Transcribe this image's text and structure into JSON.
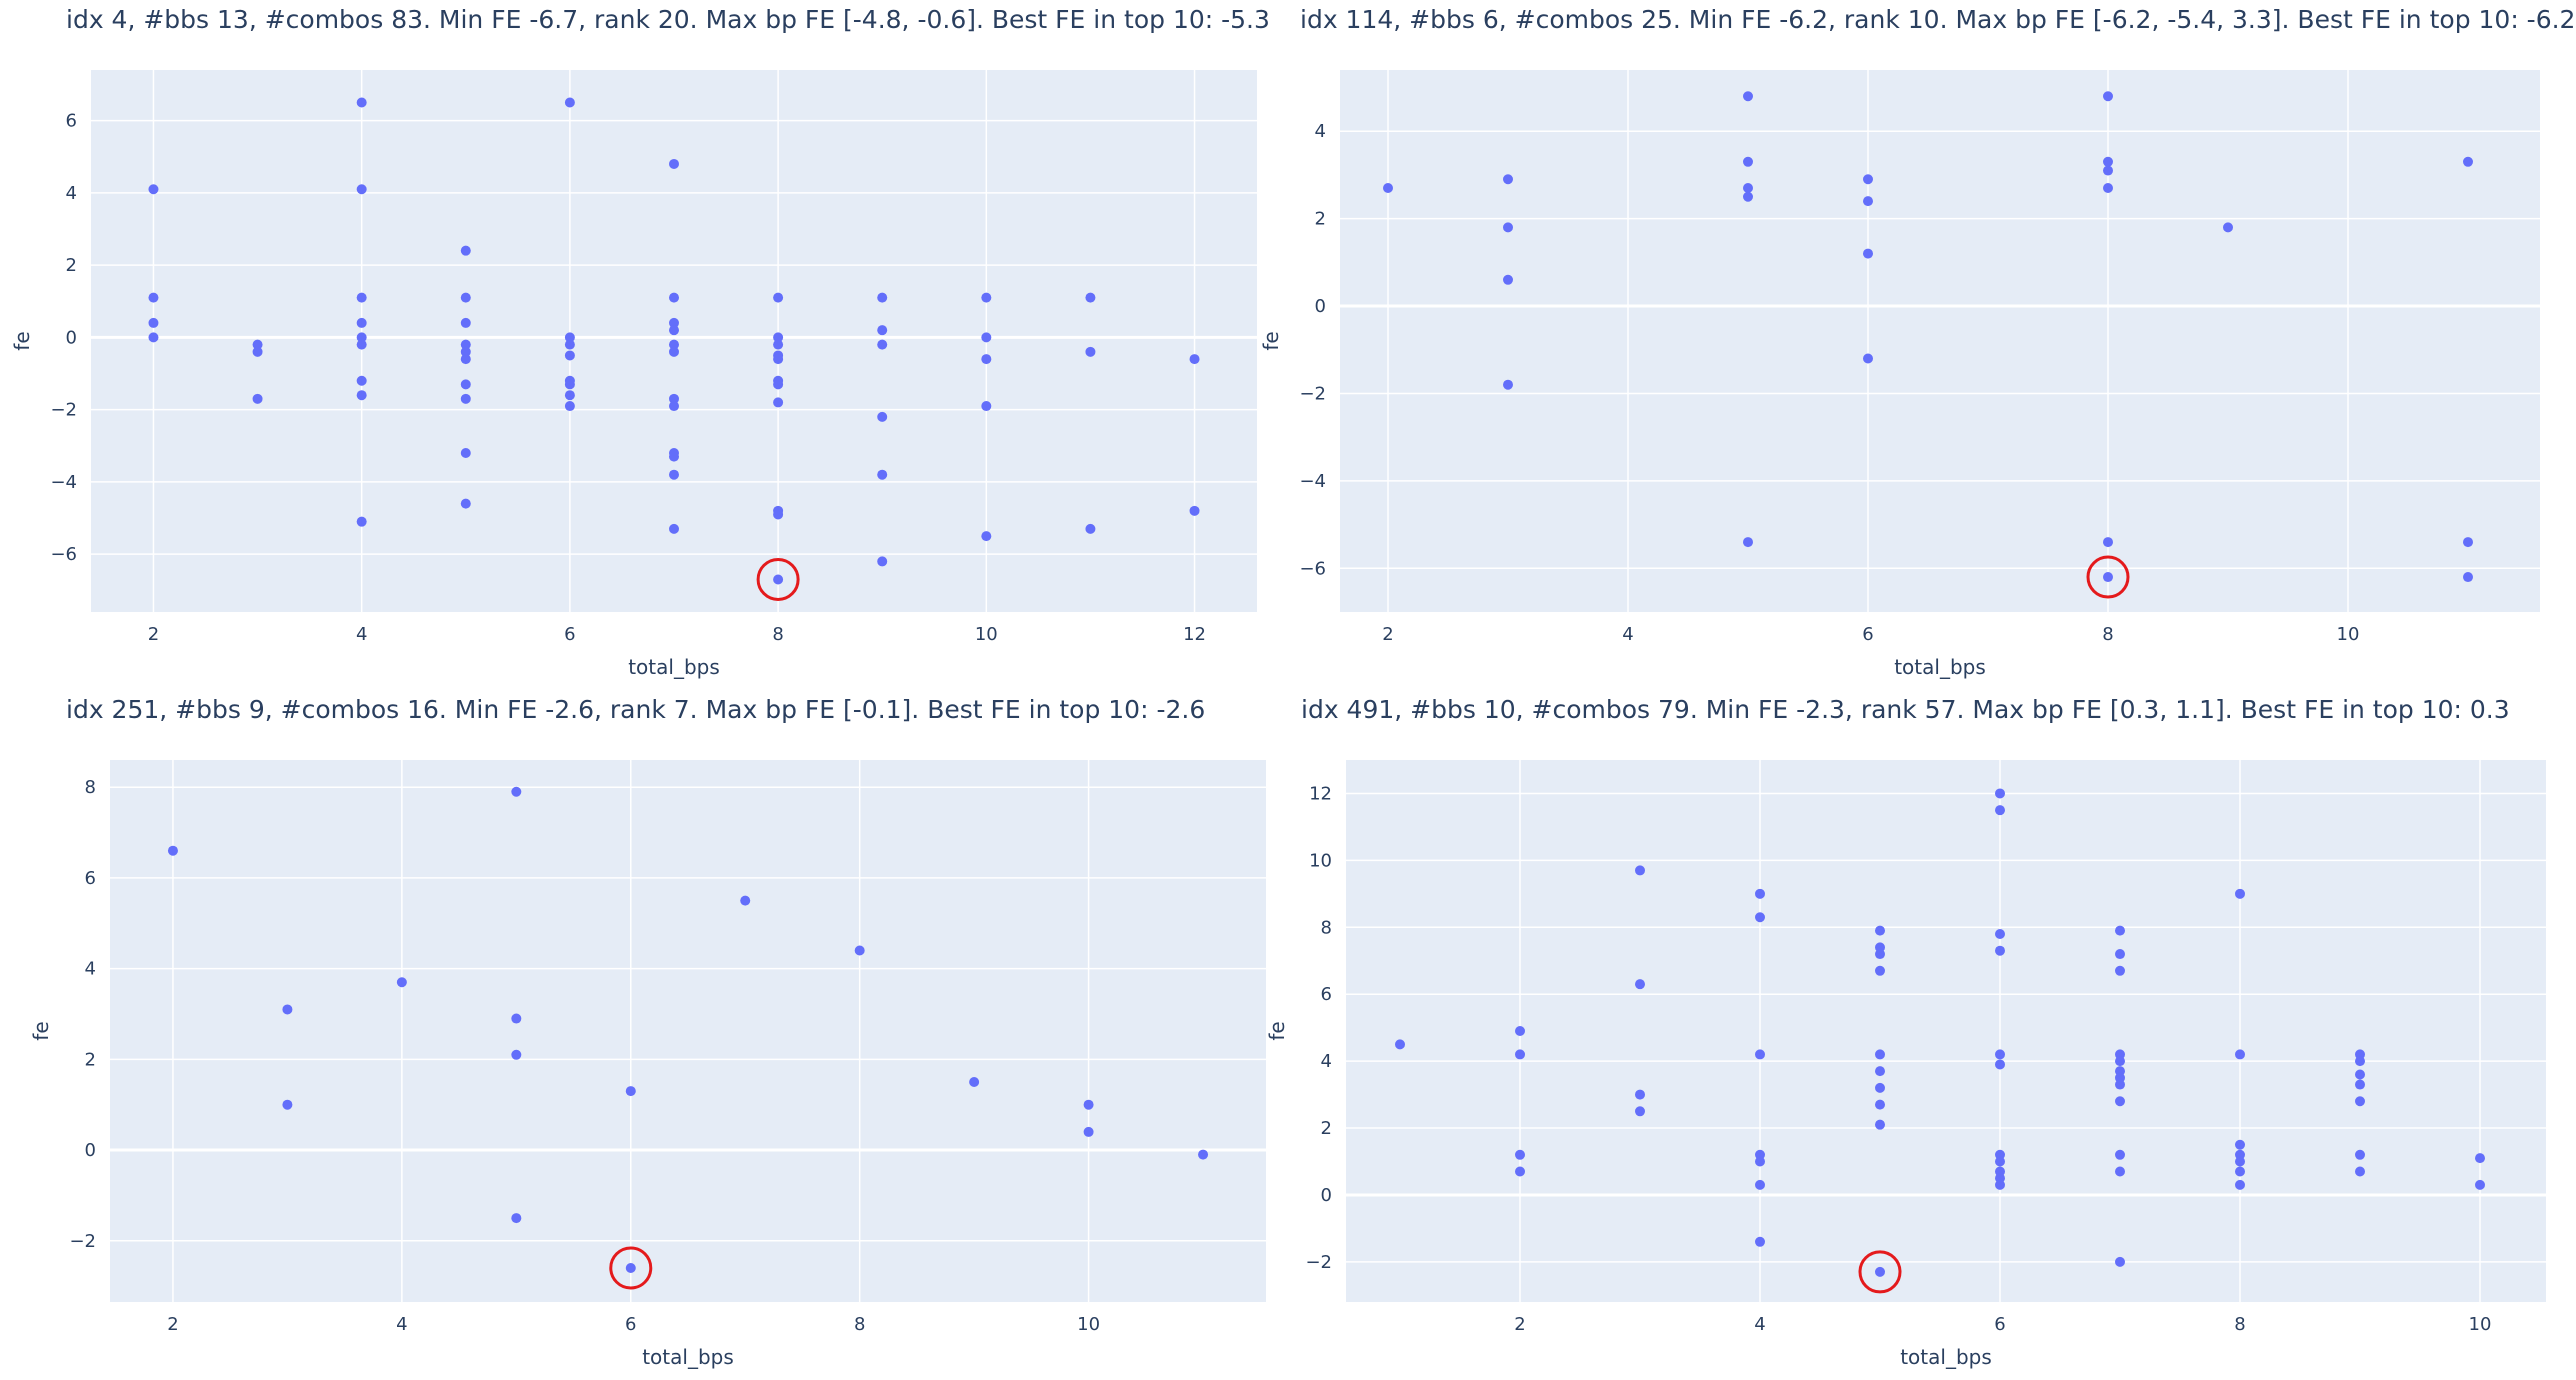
{
  "colors": {
    "background": "#ffffff",
    "plot_bg": "#e5ecf6",
    "grid": "#ffffff",
    "point": "#636efa",
    "highlight": "#e41a1c",
    "text": "#2a3f5f"
  },
  "chart_data": [
    {
      "type": "scatter",
      "title": "idx 4, #bbs 13, #combos 83. Min FE -6.7, rank 20. Max bp FE [-4.8, -0.6]. Best FE in top 10: -5.3",
      "xlabel": "total_bps",
      "ylabel": "fe",
      "xlim": [
        1.4,
        12.6
      ],
      "ylim": [
        -7.6,
        7.4
      ],
      "xticks": [
        2,
        4,
        6,
        8,
        10,
        12
      ],
      "yticks": [
        -6,
        -4,
        -2,
        0,
        2,
        4,
        6
      ],
      "grid": true,
      "highlight": {
        "x": 8,
        "y": -6.7
      },
      "points": [
        [
          2,
          4.1
        ],
        [
          2,
          1.1
        ],
        [
          2,
          0.4
        ],
        [
          2,
          0.0
        ],
        [
          3,
          -0.2
        ],
        [
          3,
          -0.4
        ],
        [
          3,
          -1.7
        ],
        [
          4,
          6.5
        ],
        [
          4,
          4.1
        ],
        [
          4,
          1.1
        ],
        [
          4,
          0.4
        ],
        [
          4,
          0.0
        ],
        [
          4,
          -0.2
        ],
        [
          4,
          -1.2
        ],
        [
          4,
          -1.6
        ],
        [
          4,
          -5.1
        ],
        [
          5,
          2.4
        ],
        [
          5,
          1.1
        ],
        [
          5,
          0.4
        ],
        [
          5,
          -0.2
        ],
        [
          5,
          -0.4
        ],
        [
          5,
          -0.6
        ],
        [
          5,
          -1.3
        ],
        [
          5,
          -1.7
        ],
        [
          5,
          -3.2
        ],
        [
          5,
          -4.6
        ],
        [
          6,
          6.5
        ],
        [
          6,
          0.0
        ],
        [
          6,
          -0.2
        ],
        [
          6,
          -0.5
        ],
        [
          6,
          -1.2
        ],
        [
          6,
          -1.3
        ],
        [
          6,
          -1.6
        ],
        [
          6,
          -1.9
        ],
        [
          7,
          4.8
        ],
        [
          7,
          1.1
        ],
        [
          7,
          0.4
        ],
        [
          7,
          0.2
        ],
        [
          7,
          -0.2
        ],
        [
          7,
          -0.4
        ],
        [
          7,
          -1.7
        ],
        [
          7,
          -1.9
        ],
        [
          7,
          -3.2
        ],
        [
          7,
          -3.3
        ],
        [
          7,
          -3.8
        ],
        [
          7,
          -5.3
        ],
        [
          8,
          1.1
        ],
        [
          8,
          0.0
        ],
        [
          8,
          -0.2
        ],
        [
          8,
          -0.5
        ],
        [
          8,
          -0.6
        ],
        [
          8,
          -1.2
        ],
        [
          8,
          -1.3
        ],
        [
          8,
          -1.8
        ],
        [
          8,
          -4.8
        ],
        [
          8,
          -4.9
        ],
        [
          8,
          -6.7
        ],
        [
          9,
          1.1
        ],
        [
          9,
          0.2
        ],
        [
          9,
          -0.2
        ],
        [
          9,
          -2.2
        ],
        [
          9,
          -3.8
        ],
        [
          9,
          -6.2
        ],
        [
          10,
          1.1
        ],
        [
          10,
          0.0
        ],
        [
          10,
          -0.6
        ],
        [
          10,
          -1.9
        ],
        [
          10,
          -5.5
        ],
        [
          11,
          1.1
        ],
        [
          11,
          -0.4
        ],
        [
          11,
          -5.3
        ],
        [
          12,
          -0.6
        ],
        [
          12,
          -4.8
        ]
      ]
    },
    {
      "type": "scatter",
      "title": "idx 114, #bbs 6, #combos 25. Min FE -6.2, rank 10. Max bp FE [-6.2, -5.4, 3.3]. Best FE in top 10: -6.2",
      "xlabel": "total_bps",
      "ylabel": "fe",
      "xlim": [
        1.6,
        11.6
      ],
      "ylim": [
        -7.0,
        5.4
      ],
      "xticks": [
        2,
        4,
        6,
        8,
        10
      ],
      "yticks": [
        -6,
        -4,
        -2,
        0,
        2,
        4
      ],
      "grid": true,
      "highlight": {
        "x": 8,
        "y": -6.2
      },
      "points": [
        [
          2,
          2.7
        ],
        [
          3,
          2.9
        ],
        [
          3,
          1.8
        ],
        [
          3,
          0.6
        ],
        [
          3,
          -1.8
        ],
        [
          5,
          4.8
        ],
        [
          5,
          3.3
        ],
        [
          5,
          2.7
        ],
        [
          5,
          2.5
        ],
        [
          5,
          -5.4
        ],
        [
          6,
          2.9
        ],
        [
          6,
          2.4
        ],
        [
          6,
          1.2
        ],
        [
          6,
          -1.2
        ],
        [
          8,
          4.8
        ],
        [
          8,
          3.3
        ],
        [
          8,
          3.1
        ],
        [
          8,
          2.7
        ],
        [
          8,
          -5.4
        ],
        [
          8,
          -6.2
        ],
        [
          9,
          1.8
        ],
        [
          11,
          3.3
        ],
        [
          11,
          -5.4
        ],
        [
          11,
          -6.2
        ]
      ]
    },
    {
      "type": "scatter",
      "title": "idx 251, #bbs 9, #combos 16. Min FE -2.6, rank 7. Max bp FE [-0.1]. Best FE in top 10: -2.6",
      "xlabel": "total_bps",
      "ylabel": "fe",
      "xlim": [
        1.45,
        11.55
      ],
      "ylim": [
        -3.35,
        8.6
      ],
      "xticks": [
        2,
        4,
        6,
        8,
        10
      ],
      "yticks": [
        -2,
        0,
        2,
        4,
        6,
        8
      ],
      "grid": true,
      "highlight": {
        "x": 6,
        "y": -2.6
      },
      "points": [
        [
          2,
          6.6
        ],
        [
          3,
          3.1
        ],
        [
          3,
          1.0
        ],
        [
          4,
          3.7
        ],
        [
          5,
          7.9
        ],
        [
          5,
          2.9
        ],
        [
          5,
          2.1
        ],
        [
          5,
          -1.5
        ],
        [
          6,
          1.3
        ],
        [
          6,
          -2.6
        ],
        [
          7,
          5.5
        ],
        [
          8,
          4.4
        ],
        [
          9,
          1.5
        ],
        [
          10,
          1.0
        ],
        [
          10,
          0.4
        ],
        [
          11,
          -0.1
        ]
      ]
    },
    {
      "type": "scatter",
      "title": "idx 491, #bbs 10, #combos 79. Min FE -2.3, rank 57. Max bp FE [0.3, 1.1]. Best FE in top 10: 0.3",
      "xlabel": "total_bps",
      "ylabel": "fe",
      "xlim": [
        0.55,
        10.55
      ],
      "ylim": [
        -3.2,
        13.0
      ],
      "xticks": [
        2,
        4,
        6,
        8,
        10
      ],
      "yticks": [
        -2,
        0,
        2,
        4,
        6,
        8,
        10,
        12
      ],
      "grid": true,
      "highlight": {
        "x": 5,
        "y": -2.3
      },
      "points": [
        [
          1,
          4.5
        ],
        [
          2,
          4.9
        ],
        [
          2,
          4.2
        ],
        [
          2,
          1.2
        ],
        [
          2,
          0.7
        ],
        [
          3,
          9.7
        ],
        [
          3,
          6.3
        ],
        [
          3,
          3.0
        ],
        [
          3,
          2.5
        ],
        [
          4,
          9.0
        ],
        [
          4,
          8.3
        ],
        [
          4,
          4.2
        ],
        [
          4,
          1.2
        ],
        [
          4,
          1.0
        ],
        [
          4,
          0.3
        ],
        [
          4,
          -1.4
        ],
        [
          5,
          7.9
        ],
        [
          5,
          7.4
        ],
        [
          5,
          7.2
        ],
        [
          5,
          6.7
        ],
        [
          5,
          4.2
        ],
        [
          5,
          3.7
        ],
        [
          5,
          3.2
        ],
        [
          5,
          2.7
        ],
        [
          5,
          2.1
        ],
        [
          5,
          -2.3
        ],
        [
          6,
          12.0
        ],
        [
          6,
          11.5
        ],
        [
          6,
          7.8
        ],
        [
          6,
          7.3
        ],
        [
          6,
          4.2
        ],
        [
          6,
          3.9
        ],
        [
          6,
          1.2
        ],
        [
          6,
          1.0
        ],
        [
          6,
          0.7
        ],
        [
          6,
          0.5
        ],
        [
          6,
          0.3
        ],
        [
          7,
          7.9
        ],
        [
          7,
          7.2
        ],
        [
          7,
          6.7
        ],
        [
          7,
          4.2
        ],
        [
          7,
          4.0
        ],
        [
          7,
          3.7
        ],
        [
          7,
          3.5
        ],
        [
          7,
          3.3
        ],
        [
          7,
          2.8
        ],
        [
          7,
          1.2
        ],
        [
          7,
          0.7
        ],
        [
          7,
          -2.0
        ],
        [
          8,
          9.0
        ],
        [
          8,
          4.2
        ],
        [
          8,
          1.5
        ],
        [
          8,
          1.2
        ],
        [
          8,
          1.0
        ],
        [
          8,
          0.7
        ],
        [
          8,
          0.3
        ],
        [
          9,
          4.2
        ],
        [
          9,
          4.0
        ],
        [
          9,
          3.6
        ],
        [
          9,
          3.3
        ],
        [
          9,
          2.8
        ],
        [
          9,
          1.2
        ],
        [
          9,
          0.7
        ],
        [
          10,
          1.1
        ],
        [
          10,
          0.3
        ]
      ]
    }
  ]
}
